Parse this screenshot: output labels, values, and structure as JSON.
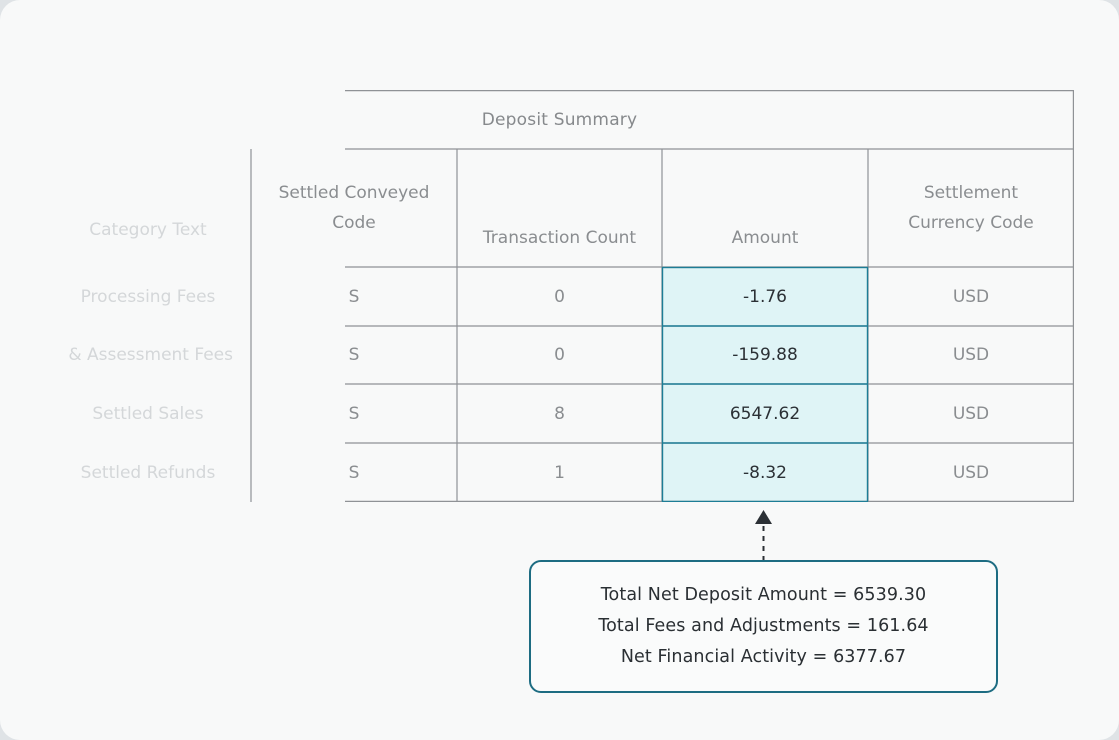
{
  "table": {
    "title": "Deposit Summary",
    "headers": [
      [
        "Category Text"
      ],
      [
        "Settled Conveyed",
        "Code"
      ],
      [
        "Transaction Count"
      ],
      [
        "Amount"
      ],
      [
        "Settlement",
        "Currency Code"
      ]
    ],
    "rows": [
      {
        "category": "Processing Fees",
        "code": "S",
        "count": "0",
        "amount": "-1.76",
        "currency": "USD"
      },
      {
        "category": "& Assessment Fees",
        "code": "S",
        "count": "0",
        "amount": "-159.88",
        "currency": "USD"
      },
      {
        "category": "Settled Sales",
        "code": "S",
        "count": "8",
        "amount": "6547.62",
        "currency": "USD"
      },
      {
        "category": "Settled Refunds",
        "code": "S",
        "count": "1",
        "amount": "-8.32",
        "currency": "USD"
      }
    ]
  },
  "callout": {
    "lines": [
      "Total Net Deposit Amount = 6539.30",
      "Total Fees and Adjustments = 161.64",
      "Net Financial Activity = 6377.67"
    ]
  },
  "colors": {
    "amount_highlight": "#dff4f6",
    "amount_border": "#1d7d96",
    "callout_border": "#1d6c82"
  }
}
